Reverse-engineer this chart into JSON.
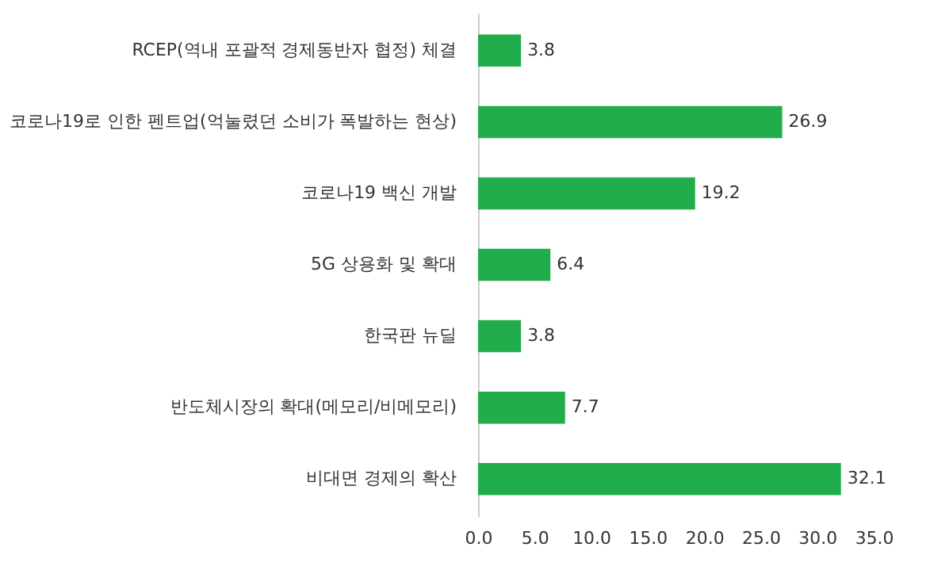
{
  "chart_data": {
    "type": "bar",
    "orientation": "horizontal",
    "categories": [
      "RCEP(역내 포괄적 경제동반자 협정) 체결",
      "코로나19로 인한 펜트업(억눌렸던 소비가 폭발하는 현상)",
      "코로나19 백신 개발",
      "5G 상용화 및 확대",
      "한국판 뉴딜",
      "반도체시장의 확대(메모리/비메모리)",
      "비대면 경제의 확산"
    ],
    "values": [
      3.8,
      26.9,
      19.2,
      6.4,
      3.8,
      7.7,
      32.1
    ],
    "color": "#21ad4b",
    "xlim": [
      0,
      35
    ],
    "xticks": [
      {
        "value": 0,
        "label": "0.0"
      },
      {
        "value": 5,
        "label": "5.0"
      },
      {
        "value": 10,
        "label": "10.0"
      },
      {
        "value": 15,
        "label": "15.0"
      },
      {
        "value": 20,
        "label": "20.0"
      },
      {
        "value": 25,
        "label": "25.0"
      },
      {
        "value": 30,
        "label": "30.0"
      },
      {
        "value": 35,
        "label": "35.0"
      }
    ],
    "data_labels": true,
    "grid": false
  }
}
